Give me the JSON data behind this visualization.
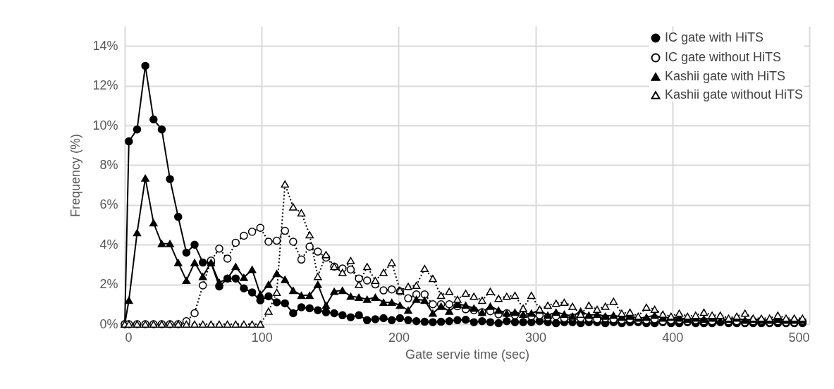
{
  "chart_data": {
    "type": "line",
    "xlabel": "Gate servie time (sec)",
    "ylabel": "Frequency (%)",
    "x": [
      0,
      3,
      9,
      15,
      21,
      27,
      33,
      39,
      45,
      51,
      57,
      63,
      69,
      75,
      81,
      87,
      93,
      99,
      105,
      111,
      117,
      123,
      129,
      135,
      141,
      147,
      153,
      159,
      165,
      171,
      177,
      183,
      189,
      195,
      201,
      207,
      213,
      219,
      225,
      231,
      237,
      243,
      249,
      255,
      261,
      267,
      273,
      279,
      285,
      291,
      297,
      303,
      309,
      315,
      321,
      327,
      333,
      339,
      345,
      351,
      357,
      363,
      369,
      375,
      381,
      387,
      393,
      399,
      405,
      411,
      417,
      423,
      429,
      435,
      441,
      447,
      453,
      459,
      465,
      471,
      477,
      483,
      489,
      495
    ],
    "series": [
      {
        "name": "IC gate with HiTS",
        "color": "#000000",
        "line_style": "solid",
        "marker": "circle",
        "values": [
          0,
          9.2,
          9.8,
          13.0,
          10.3,
          9.8,
          7.3,
          5.4,
          3.6,
          4.0,
          3.1,
          3.1,
          1.9,
          2.3,
          2.3,
          1.8,
          1.6,
          1.2,
          1.4,
          1.1,
          1.05,
          0.55,
          0.85,
          0.8,
          0.7,
          0.6,
          0.55,
          0.45,
          0.35,
          0.45,
          0.2,
          0.25,
          0.3,
          0.2,
          0.3,
          0.2,
          0.15,
          0.12,
          0.1,
          0.12,
          0.15,
          0.2,
          0.22,
          0.1,
          0.15,
          0.1,
          0.05,
          0.15,
          0.1,
          0.1,
          0.1,
          0.15,
          0.1,
          0.05,
          0.1,
          0.1,
          0.05,
          0.1,
          0.1,
          0.05,
          0.1,
          0.05,
          0.1,
          0.1,
          0.05,
          0.05,
          0.1,
          0.05,
          0.05,
          0.1,
          0.05,
          0.05,
          0.05,
          0.1,
          0.05,
          0.05,
          0.05,
          0.05,
          0.05,
          0.05,
          0.05,
          0.05,
          0.05,
          0.05
        ]
      },
      {
        "name": "IC gate without HiTS",
        "color": "#000000",
        "line_style": "dotted",
        "marker": "circle",
        "values": [
          0,
          0,
          0,
          0,
          0,
          0,
          0,
          0,
          0.15,
          0.55,
          1.95,
          3.2,
          3.8,
          3.3,
          4.1,
          4.45,
          4.65,
          4.85,
          4.15,
          4.2,
          4.7,
          4.15,
          3.25,
          3.9,
          3.65,
          3.35,
          2.9,
          2.8,
          2.75,
          2.3,
          2.2,
          2.0,
          1.7,
          1.75,
          1.65,
          1.3,
          1.5,
          1.5,
          1.0,
          1.0,
          1.0,
          0.9,
          0.75,
          0.7,
          0.6,
          0.65,
          0.5,
          0.55,
          0.45,
          0.5,
          0.4,
          0.45,
          0.35,
          0.4,
          0.3,
          0.35,
          0.3,
          0.3,
          0.25,
          0.3,
          0.25,
          0.2,
          0.25,
          0.2,
          0.2,
          0.25,
          0.15,
          0.2,
          0.2,
          0.15,
          0.2,
          0.15,
          0.15,
          0.2,
          0.15,
          0.15,
          0.1,
          0.15,
          0.15,
          0.1,
          0.15,
          0.1,
          0.1,
          0.15
        ]
      },
      {
        "name": "Kashii gate with HiTS",
        "color": "#000000",
        "line_style": "solid",
        "marker": "triangle",
        "values": [
          0,
          1.2,
          4.6,
          7.35,
          5.1,
          4.05,
          4.05,
          3.1,
          2.2,
          3.1,
          2.4,
          3.1,
          2.1,
          2.3,
          2.9,
          2.35,
          2.75,
          1.5,
          2.0,
          2.55,
          2.25,
          1.7,
          1.45,
          1.45,
          2.0,
          0.95,
          1.65,
          1.7,
          1.4,
          1.35,
          1.25,
          1.35,
          1.1,
          1.1,
          0.95,
          0.7,
          1.25,
          1.2,
          0.55,
          0.9,
          0.65,
          1.0,
          0.95,
          0.8,
          0.6,
          0.9,
          0.7,
          0.55,
          0.6,
          0.5,
          0.55,
          0.7,
          0.45,
          0.6,
          0.5,
          0.4,
          0.65,
          0.45,
          0.5,
          0.4,
          0.45,
          0.35,
          0.4,
          0.3,
          0.35,
          0.45,
          0.3,
          0.35,
          0.3,
          0.25,
          0.3,
          0.25,
          0.3,
          0.2,
          0.25,
          0.3,
          0.2,
          0.25,
          0.2,
          0.2,
          0.25,
          0.2,
          0.2,
          0.2
        ]
      },
      {
        "name": "Kashii gate without HiTS",
        "color": "#000000",
        "line_style": "dotted",
        "marker": "triangle",
        "values": [
          0,
          0,
          0,
          0,
          0,
          0,
          0,
          0,
          0,
          0,
          0,
          0,
          0,
          0,
          0,
          0,
          0,
          0,
          0.65,
          1.6,
          7.05,
          5.9,
          5.6,
          4.5,
          2.4,
          3.5,
          2.9,
          2.6,
          3.2,
          2.0,
          2.9,
          2.2,
          2.6,
          3.1,
          1.7,
          1.9,
          1.95,
          2.8,
          2.3,
          1.45,
          1.65,
          1.25,
          1.55,
          1.4,
          1.2,
          1.65,
          1.3,
          1.4,
          1.45,
          0.8,
          1.45,
          0.75,
          0.95,
          1.05,
          1.1,
          0.9,
          0.5,
          0.95,
          0.75,
          0.9,
          1.15,
          0.55,
          0.6,
          0.4,
          0.85,
          0.75,
          0.5,
          0.4,
          0.55,
          0.4,
          0.45,
          0.6,
          0.45,
          0.45,
          0.3,
          0.4,
          0.55,
          0.3,
          0.3,
          0.3,
          0.45,
          0.3,
          0.3,
          0.3
        ]
      }
    ],
    "xlim": [
      0,
      500
    ],
    "xticks": [
      0,
      100,
      200,
      300,
      400,
      500
    ],
    "ylim": [
      0,
      15
    ],
    "yticks": [
      {
        "value": 0,
        "label": "0%"
      },
      {
        "value": 2,
        "label": "2%"
      },
      {
        "value": 4,
        "label": "4%"
      },
      {
        "value": 6,
        "label": "6%"
      },
      {
        "value": 8,
        "label": "8%"
      },
      {
        "value": 10,
        "label": "10%"
      },
      {
        "value": 12,
        "label": "12%"
      },
      {
        "value": 14,
        "label": "14%"
      }
    ],
    "grid": true,
    "legend": "top right"
  }
}
